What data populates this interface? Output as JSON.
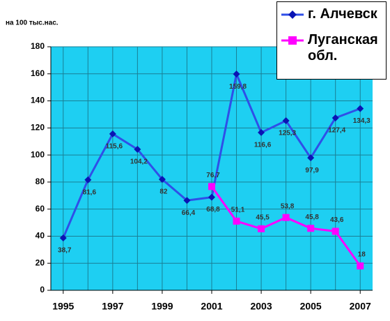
{
  "chart_data": {
    "type": "line",
    "y_label": "на 100 тыс.нас.",
    "x": [
      1995,
      1996,
      1997,
      1998,
      1999,
      2000,
      2001,
      2002,
      2003,
      2004,
      2005,
      2006,
      2007
    ],
    "xlim": [
      1994.5,
      2007.5
    ],
    "xticks": [
      1995,
      1997,
      1999,
      2001,
      2003,
      2005,
      2007
    ],
    "ylim": [
      0,
      180
    ],
    "yticks": [
      0,
      20,
      40,
      60,
      80,
      100,
      120,
      140,
      160,
      180
    ],
    "grid": true,
    "legend": "upper right",
    "background": "#1ecff2",
    "series": [
      {
        "name": "г. Алчевск",
        "color": "#2f4fe8",
        "marker_color": "#0a14b4",
        "marker": "diamond",
        "values": [
          38.7,
          81.6,
          115.6,
          104.2,
          82,
          66.4,
          68.8,
          159.8,
          116.6,
          125.3,
          97.9,
          127.4,
          134.3
        ],
        "value_labels": [
          "38,7",
          "81,6",
          "115,6",
          "104,2",
          "82",
          "66,4",
          "68,8",
          "159,8",
          "116,6",
          "125,3",
          "97,9",
          "127,4",
          "134,3"
        ]
      },
      {
        "name": "Луганская обл.",
        "color": "#ff00ff",
        "marker_color": "#ff00ff",
        "marker": "square",
        "values": [
          null,
          null,
          null,
          null,
          null,
          null,
          76.7,
          51.1,
          45.5,
          53.8,
          45.8,
          43.6,
          18
        ],
        "value_labels": [
          null,
          null,
          null,
          null,
          null,
          null,
          "76,7",
          "51,1",
          "45,5",
          "53,8",
          "45,8",
          "43,6",
          "18"
        ]
      }
    ]
  }
}
